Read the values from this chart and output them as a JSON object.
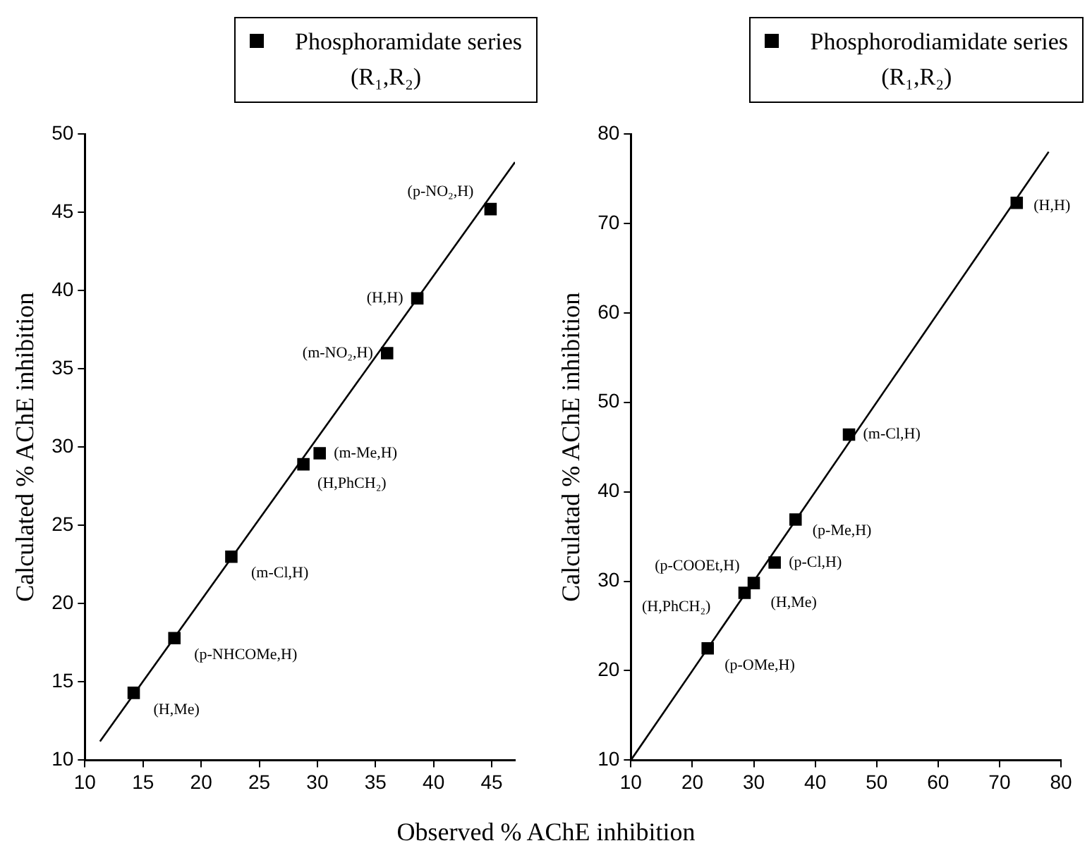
{
  "chart_data": [
    {
      "type": "scatter",
      "xlabel": "Observed % AChE inhibition",
      "ylabel": "Calculated % AChE inhibition",
      "xlim": [
        10,
        47
      ],
      "xticks": [
        10,
        15,
        20,
        25,
        30,
        35,
        40,
        45
      ],
      "ylim": [
        10,
        50
      ],
      "yticks": [
        10,
        15,
        20,
        25,
        30,
        35,
        40,
        45,
        50
      ],
      "grid": false,
      "legend": "top right",
      "marker": "square",
      "series": [
        {
          "name": "Phosphoramidate series\n(R₁,R₂)",
          "color": "#000000",
          "x": [
            14.2,
            17.7,
            22.6,
            28.8,
            30.2,
            36,
            38.6,
            44.9
          ],
          "values": [
            14.3,
            17.8,
            23,
            28.9,
            29.6,
            36,
            39.5,
            45.2
          ]
        },
        {
          "type": "line",
          "marker": "none",
          "line_style": "solid",
          "color": "#000000",
          "x": [
            11.3,
            47
          ],
          "values": [
            11.2,
            48.2
          ]
        }
      ],
      "annotations": [
        {
          "text": "(H,Me)",
          "x": 14.2,
          "y": 14.3
        },
        {
          "text": "(p-NHCOMe,H)",
          "x": 17.7,
          "y": 17.8
        },
        {
          "text": "(m-Cl,H)",
          "x": 22.6,
          "y": 23
        },
        {
          "text": "(H,PhCH₂)",
          "x": 28.8,
          "y": 28.9
        },
        {
          "text": "(m-Me,H)",
          "x": 30.2,
          "y": 29.6
        },
        {
          "text": "(m-NO₂,H)",
          "x": 36,
          "y": 36
        },
        {
          "text": "(H,H)",
          "x": 38.6,
          "y": 39.5
        },
        {
          "text": "(p-NO₂,H)",
          "x": 44.9,
          "y": 45.2
        }
      ]
    },
    {
      "type": "scatter",
      "ylabel": "Calculatad % AChE inhibition",
      "xlim": [
        10,
        80
      ],
      "xticks": [
        10,
        20,
        30,
        40,
        50,
        60,
        70,
        80
      ],
      "ylim": [
        10,
        80
      ],
      "yticks": [
        10,
        20,
        30,
        40,
        50,
        60,
        70,
        80
      ],
      "grid": false,
      "legend": "top right",
      "marker": "square",
      "series": [
        {
          "name": "Phosphorodiamidate series\n(R₁,R₂)",
          "color": "#000000",
          "x": [
            22.5,
            28.5,
            30,
            33.4,
            36.8,
            45.5,
            72.8
          ],
          "values": [
            22.5,
            28.7,
            29.8,
            32.1,
            36.9,
            46.4,
            72.3
          ]
        },
        {
          "type": "line",
          "marker": "none",
          "line_style": "solid",
          "color": "#000000",
          "x": [
            10,
            78
          ],
          "values": [
            10,
            78
          ]
        }
      ],
      "annotations": [
        {
          "text": "(p-OMe,H)",
          "x": 22.5,
          "y": 22.5
        },
        {
          "text": "(H,PhCH₂)",
          "x": 28.5,
          "y": 28.7
        },
        {
          "text": "(H,Me)",
          "x": 30,
          "y": 29.8
        },
        {
          "text": "(p-COOEt,H)",
          "x": 30,
          "y": 29.8
        },
        {
          "text": "(p-Cl,H)",
          "x": 33.4,
          "y": 32.1
        },
        {
          "text": "(p-Me,H)",
          "x": 36.8,
          "y": 36.9
        },
        {
          "text": "(m-Cl,H)",
          "x": 45.5,
          "y": 46.4
        },
        {
          "text": "(H,H)",
          "x": 72.8,
          "y": 72.3
        }
      ]
    }
  ]
}
